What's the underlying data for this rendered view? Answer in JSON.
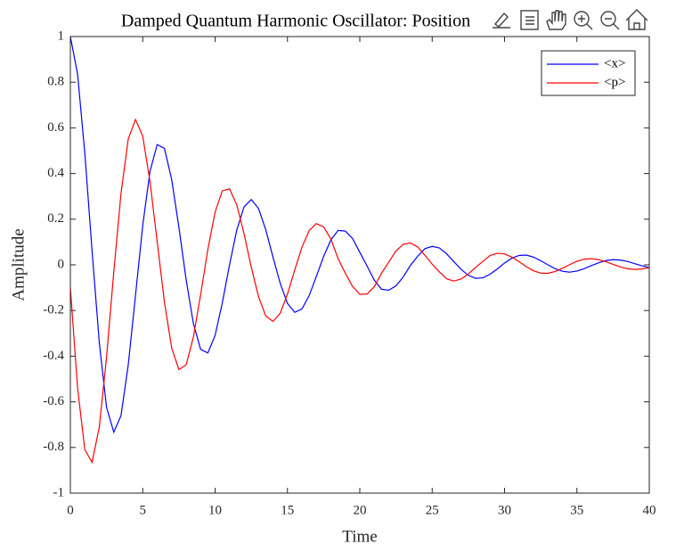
{
  "chart_data": {
    "type": "line",
    "title": "Damped Quantum Harmonic Oscillator: Position",
    "x_label": "Time",
    "y_label": "Amplitude",
    "x": [
      0,
      0.5,
      1,
      1.5,
      2,
      2.5,
      3,
      3.5,
      4,
      4.5,
      5,
      5.5,
      6,
      6.5,
      7,
      7.5,
      8,
      8.5,
      9,
      9.5,
      10,
      10.5,
      11,
      11.5,
      12,
      12.5,
      13,
      13.5,
      14,
      14.5,
      15,
      15.5,
      16,
      16.5,
      17,
      17.5,
      18,
      18.5,
      19,
      19.5,
      20,
      20.5,
      21,
      21.5,
      22,
      22.5,
      23,
      23.5,
      24,
      24.5,
      25,
      25.5,
      26,
      26.5,
      27,
      27.5,
      28,
      28.5,
      29,
      29.5,
      30,
      30.5,
      31,
      31.5,
      32,
      32.5,
      33,
      33.5,
      34,
      34.5,
      35,
      35.5,
      36,
      36.5,
      37,
      37.5,
      38,
      38.5,
      39,
      39.5,
      40
    ],
    "series": [
      {
        "name": "<x>",
        "color": "#0000ff",
        "values": [
          1,
          0.835,
          0.489,
          0.061,
          -0.341,
          -0.624,
          -0.733,
          -0.66,
          -0.438,
          -0.134,
          0.172,
          0.409,
          0.527,
          0.51,
          0.374,
          0.164,
          -0.065,
          -0.257,
          -0.37,
          -0.386,
          -0.309,
          -0.166,
          0.001,
          0.153,
          0.254,
          0.286,
          0.247,
          0.154,
          0.034,
          -0.081,
          -0.169,
          -0.208,
          -0.193,
          -0.135,
          -0.05,
          0.037,
          0.109,
          0.151,
          0.148,
          0.115,
          0.055,
          -0.005,
          -0.067,
          -0.107,
          -0.111,
          -0.092,
          -0.053,
          -0.002,
          0.038,
          0.071,
          0.081,
          0.074,
          0.048,
          0.014,
          -0.02,
          -0.046,
          -0.059,
          -0.057,
          -0.041,
          -0.018,
          0.008,
          0.029,
          0.041,
          0.043,
          0.034,
          0.018,
          0,
          -0.017,
          -0.028,
          -0.032,
          -0.027,
          -0.017,
          -0.003,
          0.009,
          0.019,
          0.023,
          0.021,
          0.015,
          0.005,
          -0.004,
          -0.012
        ]
      },
      {
        "name": "<p>",
        "color": "#ff0000",
        "values": [
          -0.1,
          -0.54,
          -0.81,
          -0.865,
          -0.71,
          -0.404,
          -0.031,
          0.313,
          0.551,
          0.637,
          0.564,
          0.366,
          0.101,
          -0.163,
          -0.364,
          -0.459,
          -0.438,
          -0.316,
          -0.131,
          0.068,
          0.231,
          0.324,
          0.333,
          0.262,
          0.136,
          -0.01,
          -0.139,
          -0.224,
          -0.248,
          -0.212,
          -0.128,
          -0.023,
          0.077,
          0.15,
          0.181,
          0.166,
          0.113,
          0.027,
          -0.037,
          -0.095,
          -0.129,
          -0.128,
          -0.096,
          -0.037,
          0.012,
          0.061,
          0.09,
          0.096,
          0.078,
          0.042,
          0.003,
          -0.031,
          -0.061,
          -0.071,
          -0.062,
          -0.04,
          -0.011,
          0.015,
          0.041,
          0.051,
          0.048,
          0.034,
          0.014,
          -0.008,
          -0.026,
          -0.036,
          -0.037,
          -0.029,
          -0.015,
          0.001,
          0.016,
          0.025,
          0.027,
          0.023,
          0.014,
          0.002,
          -0.009,
          -0.017,
          -0.02,
          -0.018,
          -0.012
        ]
      }
    ],
    "xlim": [
      0,
      40
    ],
    "xticks": [
      0,
      5,
      10,
      15,
      20,
      25,
      30,
      35,
      40
    ],
    "ylim": [
      -1,
      1
    ],
    "yticks": [
      -1,
      -0.8,
      -0.6,
      -0.4,
      -0.2,
      0,
      0.2,
      0.4,
      0.6,
      0.8,
      1
    ],
    "grid": false,
    "legend": "northeast"
  }
}
